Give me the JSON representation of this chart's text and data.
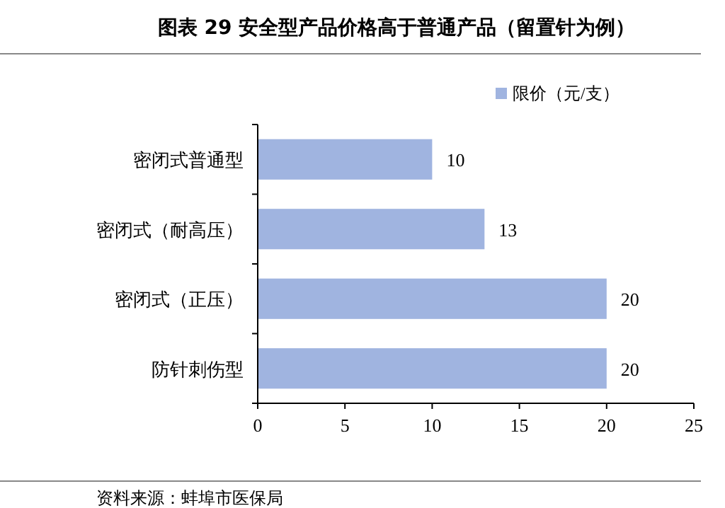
{
  "chart_data": {
    "type": "bar",
    "orientation": "horizontal",
    "title": "图表 29 安全型产品价格高于普通产品（留置针为例）",
    "categories": [
      "密闭式普通型",
      "密闭式（耐高压）",
      "密闭式（正压）",
      "防针刺伤型"
    ],
    "series": [
      {
        "name": "限价（元/支）",
        "color": "#a0b4e0",
        "values": [
          10,
          13,
          20,
          20
        ]
      }
    ],
    "xlim": [
      0,
      25
    ],
    "xticks": [
      0,
      5,
      10,
      15,
      20,
      25
    ],
    "data_labels": true,
    "legend": "top right",
    "annotations": [
      "资料来源：蚌埠市医保局"
    ]
  }
}
